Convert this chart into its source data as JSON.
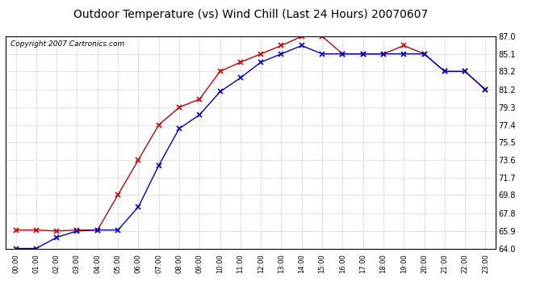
{
  "title": "Outdoor Temperature (vs) Wind Chill (Last 24 Hours) 20070607",
  "copyright": "Copyright 2007 Cartronics.com",
  "hours": [
    "00:00",
    "01:00",
    "02:00",
    "03:00",
    "04:00",
    "05:00",
    "06:00",
    "07:00",
    "08:00",
    "09:00",
    "10:00",
    "11:00",
    "12:00",
    "13:00",
    "14:00",
    "15:00",
    "16:00",
    "17:00",
    "18:00",
    "19:00",
    "20:00",
    "21:00",
    "22:00",
    "23:00"
  ],
  "temp": [
    66.0,
    66.0,
    65.9,
    66.0,
    66.0,
    69.8,
    73.6,
    77.4,
    79.3,
    80.2,
    83.2,
    84.2,
    85.1,
    86.0,
    87.0,
    87.0,
    85.1,
    85.1,
    85.1,
    86.0,
    85.1,
    83.2,
    83.2,
    81.2
  ],
  "wind_chill": [
    64.0,
    64.0,
    65.2,
    65.9,
    66.0,
    66.0,
    68.5,
    73.0,
    77.0,
    78.5,
    81.0,
    82.5,
    84.2,
    85.1,
    86.0,
    85.1,
    85.1,
    85.1,
    85.1,
    85.1,
    85.1,
    83.2,
    83.2,
    81.2
  ],
  "temp_color": "#cc0000",
  "wind_chill_color": "#0000cc",
  "ylim_min": 64.0,
  "ylim_max": 87.0,
  "yticks": [
    64.0,
    65.9,
    67.8,
    69.8,
    71.7,
    73.6,
    75.5,
    77.4,
    79.3,
    81.2,
    83.2,
    85.1,
    87.0
  ],
  "bg_color": "#ffffff",
  "plot_bg": "#ffffff",
  "grid_color": "#bbbbbb",
  "title_fontsize": 10,
  "copyright_fontsize": 6.5,
  "figwidth": 6.9,
  "figheight": 3.75,
  "dpi": 100
}
